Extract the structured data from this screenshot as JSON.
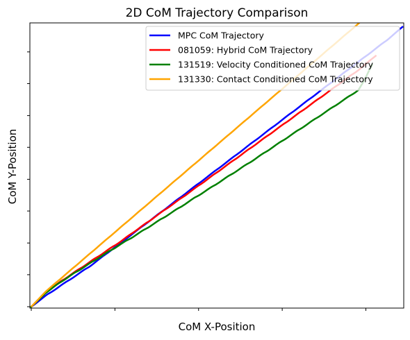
{
  "chart_data": {
    "type": "line",
    "title": "2D CoM Trajectory Comparison",
    "xlabel": "CoM X-Position",
    "ylabel": "CoM Y-Position",
    "xlim": [
      0,
      1
    ],
    "ylim": [
      0,
      1
    ],
    "x_tick_labels_shown": false,
    "y_tick_labels_shown": false,
    "grid": false,
    "legend_position": "top-right",
    "series": [
      {
        "name": "MPC CoM Trajectory",
        "color": "#0000ff",
        "x": [
          0,
          0.04,
          0.08,
          0.12,
          0.16,
          0.2,
          0.24,
          0.28,
          0.32,
          0.36,
          0.4,
          0.44,
          0.48,
          0.52,
          0.56,
          0.6,
          0.64,
          0.68,
          0.72,
          0.76,
          0.8,
          0.84,
          0.88,
          0.92,
          0.96,
          1.0
        ],
        "y": [
          0,
          0.04,
          0.075,
          0.11,
          0.145,
          0.185,
          0.225,
          0.265,
          0.305,
          0.345,
          0.385,
          0.425,
          0.465,
          0.505,
          0.545,
          0.585,
          0.625,
          0.665,
          0.705,
          0.745,
          0.785,
          0.825,
          0.865,
          0.905,
          0.945,
          0.99
        ]
      },
      {
        "name": "081059: Hybrid CoM Trajectory",
        "color": "#ff0000",
        "x": [
          0,
          0.04,
          0.08,
          0.12,
          0.16,
          0.2,
          0.24,
          0.28,
          0.32,
          0.36,
          0.4,
          0.44,
          0.48,
          0.52,
          0.56,
          0.6,
          0.64,
          0.68,
          0.72,
          0.76,
          0.8,
          0.84,
          0.88,
          0.93
        ],
        "y": [
          0,
          0.05,
          0.09,
          0.125,
          0.16,
          0.195,
          0.23,
          0.268,
          0.305,
          0.343,
          0.38,
          0.418,
          0.456,
          0.494,
          0.532,
          0.57,
          0.608,
          0.646,
          0.684,
          0.722,
          0.76,
          0.798,
          0.836,
          0.89
        ]
      },
      {
        "name": "131519: Velocity Conditioned CoM Trajectory",
        "color": "#008000",
        "x": [
          0,
          0.04,
          0.08,
          0.12,
          0.16,
          0.2,
          0.24,
          0.28,
          0.32,
          0.36,
          0.4,
          0.44,
          0.48,
          0.52,
          0.56,
          0.6,
          0.64,
          0.68,
          0.72,
          0.76,
          0.8,
          0.84,
          0.88,
          0.92
        ],
        "y": [
          0,
          0.05,
          0.088,
          0.122,
          0.155,
          0.188,
          0.22,
          0.252,
          0.285,
          0.318,
          0.351,
          0.385,
          0.418,
          0.452,
          0.486,
          0.52,
          0.555,
          0.59,
          0.625,
          0.66,
          0.695,
          0.73,
          0.765,
          0.86
        ]
      },
      {
        "name": "131330: Contact Conditioned CoM Trajectory",
        "color": "#ffa500",
        "x": [
          0,
          0.04,
          0.08,
          0.12,
          0.16,
          0.2,
          0.24,
          0.28,
          0.32,
          0.36,
          0.4,
          0.44,
          0.48,
          0.52,
          0.56,
          0.6,
          0.64,
          0.68,
          0.72,
          0.76,
          0.8,
          0.84,
          0.88,
          0.92
        ],
        "y": [
          0,
          0.055,
          0.1,
          0.145,
          0.19,
          0.235,
          0.28,
          0.325,
          0.37,
          0.415,
          0.46,
          0.505,
          0.55,
          0.595,
          0.64,
          0.685,
          0.73,
          0.775,
          0.82,
          0.865,
          0.91,
          0.955,
          1.0,
          1.04
        ]
      }
    ]
  }
}
